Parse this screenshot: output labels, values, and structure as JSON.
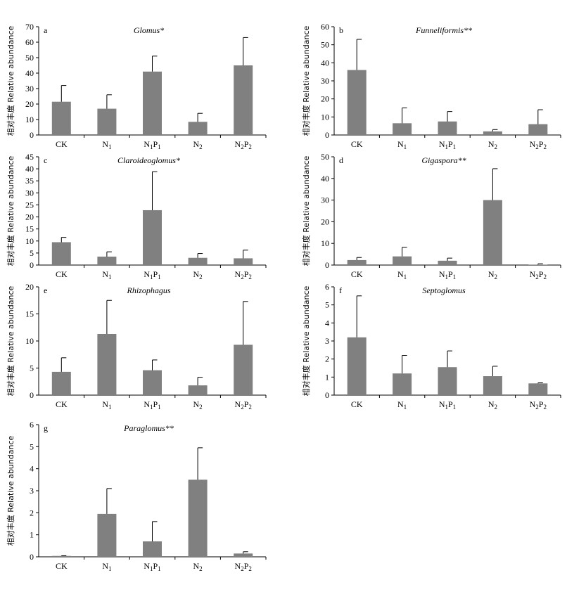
{
  "colors": {
    "bar": "#808080",
    "axis": "#000000",
    "text": "#000000"
  },
  "chart_data": [
    {
      "type": "bar",
      "panel": "a",
      "title": "Glomus*",
      "ylabel": "相对丰度 Relative abundance",
      "categories": [
        "CK",
        "N1",
        "N1P1",
        "N2",
        "N2P2"
      ],
      "values": [
        21.5,
        17,
        41,
        8.5,
        45
      ],
      "errors": [
        10.5,
        9,
        10,
        5.5,
        18
      ],
      "ylim": [
        0,
        70
      ],
      "yticks": [
        0,
        10,
        20,
        30,
        40,
        50,
        60,
        70
      ],
      "grid": false
    },
    {
      "type": "bar",
      "panel": "b",
      "title": "Funneliformis**",
      "ylabel": "相对丰度 Relative abundance",
      "categories": [
        "CK",
        "N1",
        "N1P1",
        "N2",
        "N2P2"
      ],
      "values": [
        36,
        6.5,
        7.5,
        2,
        6
      ],
      "errors": [
        17,
        8.5,
        5.5,
        1,
        8
      ],
      "ylim": [
        0,
        60
      ],
      "yticks": [
        0,
        10,
        20,
        30,
        40,
        50,
        60
      ],
      "grid": false
    },
    {
      "type": "bar",
      "panel": "c",
      "title": "Claroideoglomus*",
      "ylabel": "相对丰度 Relative abundance",
      "categories": [
        "CK",
        "N1",
        "N1P1",
        "N2",
        "N2P2"
      ],
      "values": [
        9.5,
        3.5,
        22.8,
        3,
        2.8
      ],
      "errors": [
        2,
        2,
        16,
        1.8,
        3.4
      ],
      "ylim": [
        0,
        45
      ],
      "yticks": [
        0,
        5,
        10,
        15,
        20,
        25,
        30,
        35,
        40,
        45
      ],
      "grid": false
    },
    {
      "type": "bar",
      "panel": "d",
      "title": "Gigaspora**",
      "ylabel": "相对丰度 Relative abundance",
      "categories": [
        "CK",
        "N1",
        "N1P1",
        "N2",
        "N2P2"
      ],
      "values": [
        2.3,
        4,
        2,
        30,
        0.2
      ],
      "errors": [
        1.2,
        4.2,
        1.2,
        14.5,
        0.4
      ],
      "ylim": [
        0,
        50
      ],
      "yticks": [
        0,
        10,
        20,
        30,
        40,
        50
      ],
      "grid": false
    },
    {
      "type": "bar",
      "panel": "e",
      "title": "Rhizophagus",
      "ylabel": "相对丰度 Relative abundance",
      "categories": [
        "CK",
        "N1",
        "N1P1",
        "N2",
        "N2P2"
      ],
      "values": [
        4.3,
        11.3,
        4.6,
        1.8,
        9.3
      ],
      "errors": [
        2.6,
        6.2,
        1.9,
        1.5,
        8
      ],
      "ylim": [
        0,
        20
      ],
      "yticks": [
        0,
        5,
        10,
        15,
        20
      ],
      "grid": false
    },
    {
      "type": "bar",
      "panel": "f",
      "title": "Septoglomus",
      "ylabel": "相对丰度 Relative abundance",
      "categories": [
        "CK",
        "N1",
        "N1P1",
        "N2",
        "N2P2"
      ],
      "values": [
        3.2,
        1.2,
        1.55,
        1.05,
        0.65
      ],
      "errors": [
        2.3,
        1,
        0.9,
        0.55,
        0.03
      ],
      "ylim": [
        0,
        6
      ],
      "yticks": [
        0,
        1,
        2,
        3,
        4,
        5,
        6
      ],
      "grid": false
    },
    {
      "type": "bar",
      "panel": "g",
      "title": "Paraglomus**",
      "ylabel": "相对丰度 Relative abundance",
      "categories": [
        "CK",
        "N1",
        "N1P1",
        "N2",
        "N2P2"
      ],
      "values": [
        0.04,
        1.95,
        0.7,
        3.5,
        0.15
      ],
      "errors": [
        0.01,
        1.15,
        0.9,
        1.45,
        0.08
      ],
      "ylim": [
        0,
        6
      ],
      "yticks": [
        0,
        1,
        2,
        3,
        4,
        5,
        6
      ],
      "grid": false
    }
  ]
}
